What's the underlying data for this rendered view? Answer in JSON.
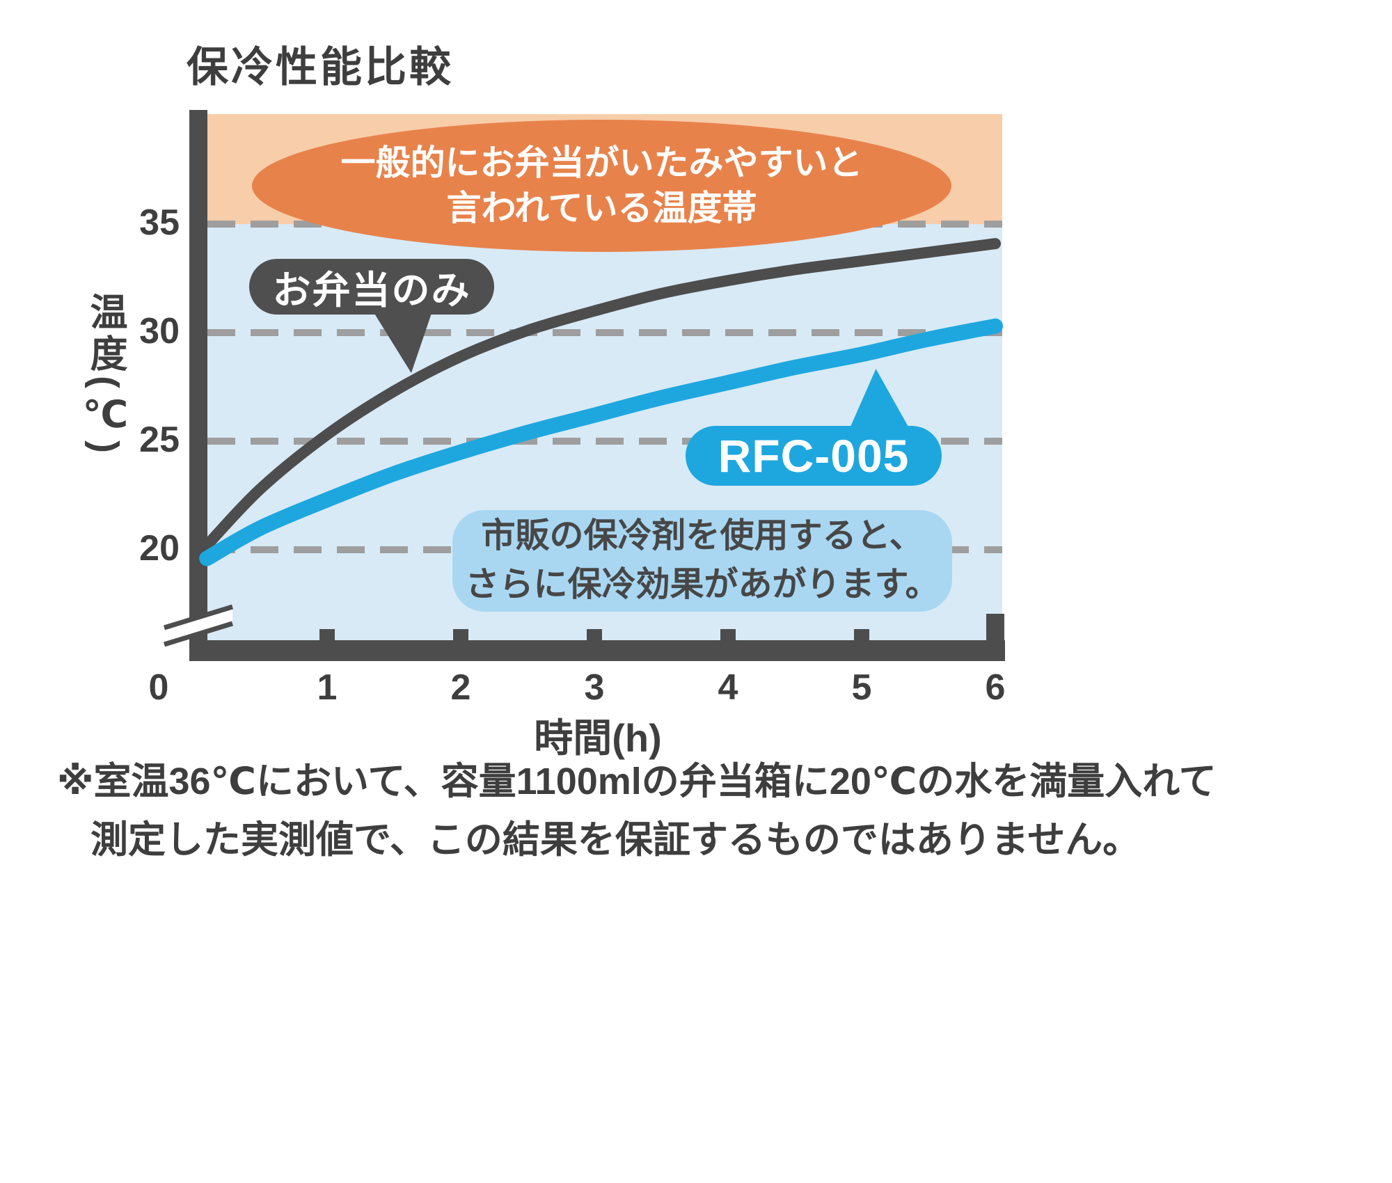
{
  "title": "保冷性能比較",
  "axis": {
    "ylabel": "温度(℃)",
    "xlabel": "時間(h)",
    "y_ticks": [
      35,
      30,
      25,
      20
    ],
    "x_ticks": [
      0,
      1,
      2,
      3,
      4,
      5,
      6
    ]
  },
  "chart_data": {
    "type": "line",
    "title": "保冷性能比較",
    "xlabel": "時間(h)",
    "ylabel": "温度(℃)",
    "xlim": [
      0,
      6
    ],
    "ylim": [
      17,
      40
    ],
    "y_axis_break": true,
    "grid": "horizontal-dashed",
    "x": [
      0.1,
      0.5,
      1,
      1.5,
      2,
      2.5,
      3,
      3.5,
      4,
      4.5,
      5,
      5.5,
      6
    ],
    "series": [
      {
        "name": "お弁当のみ",
        "color": "#4d4d4d",
        "values": [
          20.2,
          22.8,
          25.3,
          27.3,
          28.9,
          30.1,
          31.0,
          31.8,
          32.4,
          32.9,
          33.3,
          33.7,
          34.1
        ]
      },
      {
        "name": "RFC-005",
        "color": "#1ea7df",
        "values": [
          19.6,
          21.0,
          22.3,
          23.5,
          24.5,
          25.4,
          26.2,
          27.0,
          27.7,
          28.4,
          29.0,
          29.7,
          30.3
        ]
      }
    ],
    "danger_zone": {
      "above": 35,
      "fill": "#f8cda9",
      "label": "一般的にお弁当がいたみやすいと言われている温度帯"
    }
  },
  "annotations": {
    "danger_line1": "一般的にお弁当がいたみやすいと",
    "danger_line2": "言われている温度帯",
    "bento_label": "お弁当のみ",
    "product_label": "RFC-005",
    "note_line1": "市販の保冷剤を使用すると、",
    "note_line2": "さらに保冷効果があがります。"
  },
  "footnote": {
    "line1": "※室温36℃において、容量1100mlの弁当箱に20℃の水を満量入れて",
    "line2": "測定した実測値で、この結果を保証するものではありません。"
  },
  "colors": {
    "orange_band": "#f8cda9",
    "orange_callout": "#e8824b",
    "plot_bg": "#d8eaf6",
    "note_bg": "#a9d7f2",
    "line_dark": "#4d4d4d",
    "line_blue": "#1ea7df",
    "grid": "#9e9e9e",
    "text": "#3e3e3e"
  }
}
